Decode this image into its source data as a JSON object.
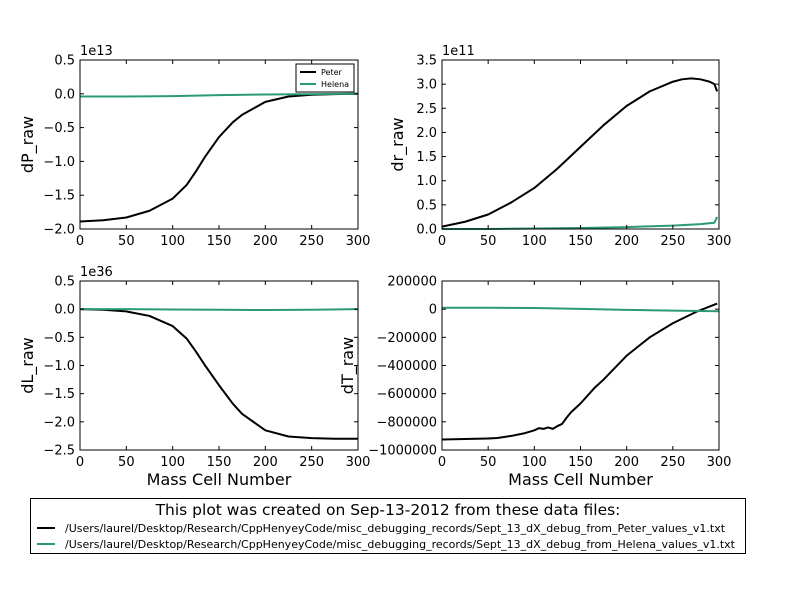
{
  "colors": {
    "peter": "#000000",
    "helena": "#2a9a76"
  },
  "figure_note": {
    "title": "This plot was created on Sep-13-2012 from these data files:",
    "files": [
      {
        "series": "Peter",
        "path": "/Users/laurel/Desktop/Research/CppHenyeyCode/misc_debugging_records/Sept_13_dX_debug_from_Peter_values_v1.txt"
      },
      {
        "series": "Helena",
        "path": "/Users/laurel/Desktop/Research/CppHenyeyCode/misc_debugging_records/Sept_13_dX_debug_from_Helena_values_v1.txt"
      }
    ]
  },
  "chart_data": [
    {
      "type": "line",
      "id": "dP",
      "title": "",
      "xlabel": "",
      "ylabel": "dP_raw",
      "multiplier": "1e13",
      "xlim": [
        0,
        300
      ],
      "ylim": [
        -2.0,
        0.5
      ],
      "xticks": [
        0,
        50,
        100,
        150,
        200,
        250,
        300
      ],
      "yticks": [
        -2.0,
        -1.5,
        -1.0,
        -0.5,
        0.0,
        0.5
      ],
      "ytick_labels": [
        "−2.0",
        "−1.5",
        "−1.0",
        "−0.5",
        "0.0",
        "0.5"
      ],
      "legend": {
        "position": "top-right",
        "entries": [
          "Peter",
          "Helena"
        ]
      },
      "series": [
        {
          "name": "Peter",
          "color": "#000000",
          "x": [
            0,
            25,
            50,
            75,
            100,
            115,
            125,
            135,
            150,
            165,
            175,
            200,
            225,
            250,
            275,
            300
          ],
          "y": [
            -1.89,
            -1.87,
            -1.83,
            -1.73,
            -1.55,
            -1.35,
            -1.15,
            -0.93,
            -0.64,
            -0.42,
            -0.31,
            -0.12,
            -0.04,
            -0.015,
            -0.005,
            0.0
          ]
        },
        {
          "name": "Helena",
          "color": "#2a9a76",
          "x": [
            0,
            50,
            100,
            150,
            200,
            250,
            300
          ],
          "y": [
            -0.04,
            -0.04,
            -0.035,
            -0.02,
            -0.01,
            -0.005,
            0.0
          ]
        }
      ]
    },
    {
      "type": "line",
      "id": "dr",
      "title": "",
      "xlabel": "",
      "ylabel": "dr_raw",
      "multiplier": "1e11",
      "xlim": [
        0,
        300
      ],
      "ylim": [
        0.0,
        3.5
      ],
      "xticks": [
        0,
        50,
        100,
        150,
        200,
        250,
        300
      ],
      "yticks": [
        0.0,
        0.5,
        1.0,
        1.5,
        2.0,
        2.5,
        3.0,
        3.5
      ],
      "ytick_labels": [
        "0.0",
        "0.5",
        "1.0",
        "1.5",
        "2.0",
        "2.5",
        "3.0",
        "3.5"
      ],
      "series": [
        {
          "name": "Peter",
          "color": "#000000",
          "x": [
            0,
            25,
            50,
            75,
            100,
            125,
            150,
            175,
            200,
            225,
            250,
            260,
            270,
            280,
            290,
            295,
            298
          ],
          "y": [
            0.05,
            0.15,
            0.3,
            0.55,
            0.85,
            1.25,
            1.7,
            2.15,
            2.55,
            2.85,
            3.05,
            3.1,
            3.12,
            3.1,
            3.05,
            3.0,
            2.85
          ]
        },
        {
          "name": "Helena",
          "color": "#2a9a76",
          "x": [
            0,
            50,
            100,
            150,
            200,
            250,
            280,
            295,
            298
          ],
          "y": [
            0.0,
            0.0,
            0.01,
            0.02,
            0.04,
            0.07,
            0.1,
            0.13,
            0.25
          ]
        }
      ]
    },
    {
      "type": "line",
      "id": "dL",
      "title": "",
      "xlabel": "Mass Cell Number",
      "ylabel": "dL_raw",
      "multiplier": "1e36",
      "xlim": [
        0,
        300
      ],
      "ylim": [
        -2.5,
        0.5
      ],
      "xticks": [
        0,
        50,
        100,
        150,
        200,
        250,
        300
      ],
      "yticks": [
        -2.5,
        -2.0,
        -1.5,
        -1.0,
        -0.5,
        0.0,
        0.5
      ],
      "ytick_labels": [
        "−2.5",
        "−2.0",
        "−1.5",
        "−1.0",
        "−0.5",
        "0.0",
        "0.5"
      ],
      "series": [
        {
          "name": "Peter",
          "color": "#000000",
          "x": [
            0,
            25,
            50,
            75,
            100,
            115,
            125,
            135,
            150,
            165,
            175,
            200,
            225,
            250,
            275,
            300
          ],
          "y": [
            0.0,
            -0.01,
            -0.04,
            -0.12,
            -0.3,
            -0.52,
            -0.75,
            -1.0,
            -1.35,
            -1.68,
            -1.86,
            -2.15,
            -2.26,
            -2.29,
            -2.3,
            -2.3
          ]
        },
        {
          "name": "Helena",
          "color": "#2a9a76",
          "x": [
            0,
            50,
            100,
            150,
            200,
            250,
            300
          ],
          "y": [
            0.0,
            0.0,
            -0.005,
            -0.01,
            -0.015,
            -0.01,
            0.0
          ]
        }
      ]
    },
    {
      "type": "line",
      "id": "dT",
      "title": "",
      "xlabel": "Mass Cell Number",
      "ylabel": "dT_raw",
      "multiplier": "",
      "xlim": [
        0,
        300
      ],
      "ylim": [
        -1000000,
        200000
      ],
      "xticks": [
        0,
        50,
        100,
        150,
        200,
        250,
        300
      ],
      "yticks": [
        -1000000,
        -800000,
        -600000,
        -400000,
        -200000,
        0,
        200000
      ],
      "ytick_labels": [
        "−1000000",
        "−800000",
        "−600000",
        "−400000",
        "−200000",
        "0",
        "200000"
      ],
      "series": [
        {
          "name": "Peter",
          "color": "#000000",
          "x": [
            0,
            25,
            50,
            60,
            75,
            90,
            100,
            105,
            110,
            115,
            120,
            125,
            130,
            135,
            140,
            150,
            165,
            175,
            200,
            225,
            250,
            275,
            298
          ],
          "y": [
            -925000,
            -922000,
            -918000,
            -915000,
            -900000,
            -880000,
            -860000,
            -845000,
            -850000,
            -840000,
            -850000,
            -830000,
            -815000,
            -770000,
            -730000,
            -670000,
            -560000,
            -500000,
            -330000,
            -200000,
            -100000,
            -20000,
            40000
          ]
        },
        {
          "name": "Helena",
          "color": "#2a9a76",
          "x": [
            0,
            50,
            100,
            150,
            200,
            250,
            300
          ],
          "y": [
            10000,
            10000,
            8000,
            2000,
            -5000,
            -10000,
            -15000
          ]
        }
      ]
    }
  ]
}
